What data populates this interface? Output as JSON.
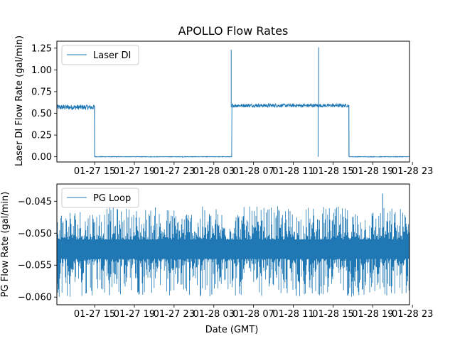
{
  "chart_data": [
    {
      "type": "line",
      "title": "APOLLO Flow Rates",
      "xlabel": "",
      "ylabel": "Laser DI Flow Rate (gal/min)",
      "xlim_hours": [
        11.2,
        46.7
      ],
      "ylim": [
        -0.06,
        1.33
      ],
      "x_tick_hours": [
        15,
        19,
        23,
        27,
        31,
        35,
        39,
        43,
        47
      ],
      "x_tick_labels": [
        "01-27 15",
        "01-27 19",
        "01-27 23",
        "01-28 03",
        "01-28 07",
        "01-28 11",
        "01-28 15",
        "01-28 19",
        "01-28 23"
      ],
      "y_ticks": [
        0.0,
        0.25,
        0.5,
        0.75,
        1.0,
        1.25
      ],
      "y_tick_labels": [
        "0.00",
        "0.25",
        "0.50",
        "0.75",
        "1.00",
        "1.25"
      ],
      "legend": "upper-left",
      "series": [
        {
          "name": "Laser DI",
          "color": "#1f77b4",
          "segments": [
            {
              "start_hour": 11.2,
              "end_hour": 15.0,
              "level": 0.57,
              "noise": 0.03
            },
            {
              "start_hour": 15.0,
              "end_hour": 28.8,
              "level": 0.0,
              "noise": 0.003
            },
            {
              "start_hour": 28.8,
              "end_hour": 38.0,
              "level": 0.59,
              "noise": 0.02
            },
            {
              "start_hour": 38.0,
              "end_hour": 40.6,
              "level": 0.59,
              "noise": 0.02
            },
            {
              "start_hour": 40.6,
              "end_hour": 46.7,
              "level": 0.0,
              "noise": 0.003
            }
          ],
          "spikes": [
            {
              "hour": 28.75,
              "value": 1.23
            },
            {
              "hour": 37.55,
              "value": 1.26
            },
            {
              "hour": 37.5,
              "value": 0.0
            }
          ]
        }
      ]
    },
    {
      "type": "line",
      "title": "",
      "xlabel": "Date (GMT)",
      "ylabel": "PG Flow Rate (gal/min)",
      "xlim_hours": [
        11.2,
        46.7
      ],
      "ylim": [
        -0.0612,
        -0.0423
      ],
      "x_tick_hours": [
        15,
        19,
        23,
        27,
        31,
        35,
        39,
        43,
        47
      ],
      "x_tick_labels": [
        "01-27 15",
        "01-27 19",
        "01-27 23",
        "01-28 03",
        "01-28 07",
        "01-28 11",
        "01-28 15",
        "01-28 19",
        "01-28 23"
      ],
      "y_ticks": [
        -0.06,
        -0.055,
        -0.05,
        -0.045
      ],
      "y_tick_labels": [
        "−0.060",
        "−0.055",
        "−0.050",
        "−0.045"
      ],
      "legend": "upper-left",
      "series": [
        {
          "name": "PG Loop",
          "color": "#1f77b4",
          "band": [
            -0.054,
            -0.051
          ],
          "outlier_range": [
            -0.06,
            -0.0458
          ],
          "spikes": [
            {
              "hour": 44.0,
              "value": -0.0438
            },
            {
              "hour": 11.3,
              "value": -0.0593
            },
            {
              "hour": 16.5,
              "value": -0.0597
            },
            {
              "hour": 35.3,
              "value": -0.0598
            },
            {
              "hour": 26.8,
              "value": -0.0596
            }
          ]
        }
      ]
    }
  ]
}
